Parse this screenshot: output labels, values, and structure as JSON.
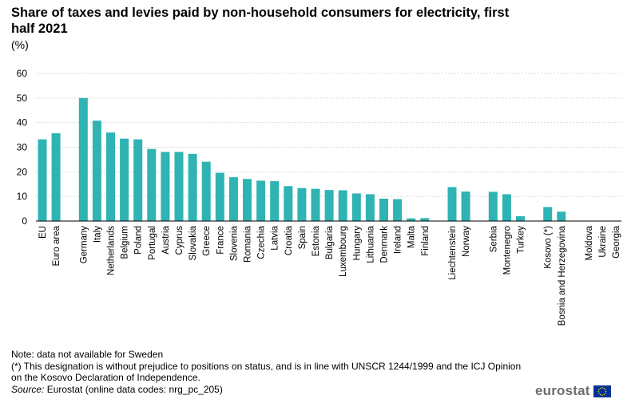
{
  "title": "Share of taxes and levies paid by non-household consumers for electricity, first half 2021",
  "unit_label": "(%)",
  "notes": {
    "note1": "Note: data not available for Sweden",
    "note2": "(*) This designation is without prejudice to positions on status, and is in line with UNSCR 1244/1999 and the ICJ Opinion on the Kosovo Declaration of Independence.",
    "source_label": "Source:",
    "source_text": "Eurostat (online data codes: nrg_pc_205)"
  },
  "logo": {
    "text": "eurostat",
    "flag_color": "#003399",
    "star_color": "#ffcc00"
  },
  "colors": {
    "bar": "#2fb3b3",
    "grid": "#d9d9d9",
    "axis": "#000000"
  },
  "chart_data": {
    "type": "bar",
    "title": "Share of taxes and levies paid by non-household consumers for electricity, first half 2021",
    "ylabel": "(%)",
    "ylim": [
      0,
      60
    ],
    "yticks": [
      0,
      10,
      20,
      30,
      40,
      50,
      60
    ],
    "grid": true,
    "groups": [
      {
        "categories": [
          "EU",
          "Euro area"
        ],
        "values": [
          33.2,
          35.7
        ]
      },
      {
        "categories": [
          "Germany",
          "Italy",
          "Netherlands",
          "Belgium",
          "Poland",
          "Portugal",
          "Austria",
          "Cyprus",
          "Slovakia",
          "Greece",
          "France",
          "Slovenia",
          "Romania",
          "Czechia",
          "Latvia",
          "Croatia",
          "Spain",
          "Estonia",
          "Bulgaria",
          "Luxembourg",
          "Hungary",
          "Lithuania",
          "Denmark",
          "Ireland",
          "Malta",
          "Finland"
        ],
        "values": [
          50.0,
          40.8,
          36.0,
          33.5,
          33.2,
          29.3,
          28.1,
          28.1,
          27.3,
          24.1,
          19.6,
          17.8,
          17.1,
          16.4,
          16.2,
          14.2,
          13.4,
          13.1,
          12.6,
          12.5,
          11.2,
          10.9,
          9.1,
          8.9,
          1.1,
          1.2
        ]
      },
      {
        "categories": [
          "Liechtenstein",
          "Norway"
        ],
        "values": [
          13.8,
          12.0
        ]
      },
      {
        "categories": [
          "Serbia",
          "Montenegro",
          "Turkey"
        ],
        "values": [
          11.9,
          10.9,
          2.0
        ]
      },
      {
        "categories": [
          "Kosovo (*)",
          "Bosnia and Herzegovina"
        ],
        "values": [
          5.7,
          3.8
        ]
      },
      {
        "categories": [
          "Moldova",
          "Ukraine",
          "Georgia"
        ],
        "values": [
          0,
          0,
          0
        ]
      }
    ]
  }
}
